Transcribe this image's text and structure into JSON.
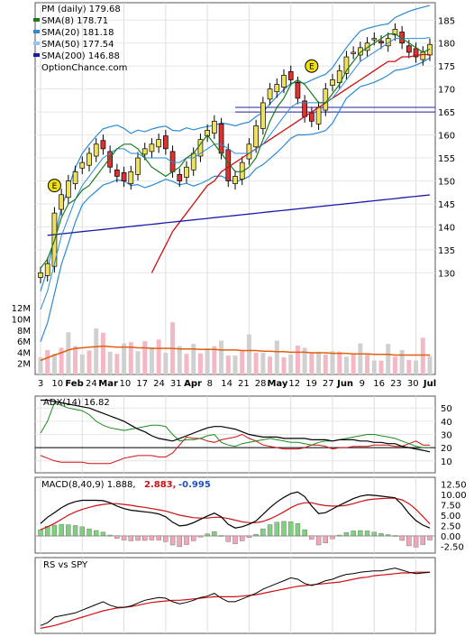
{
  "chart_data": [
    {
      "type": "candlestick",
      "panel": "price",
      "title": "PM (daily) 179.68",
      "legend": [
        {
          "label": "SMA(8) 178.71",
          "color": "#1a7a1a"
        },
        {
          "label": "SMA(20) 181.18",
          "color": "#2a8ad8"
        },
        {
          "label": "SMA(50) 177.54",
          "color": "#8ec8ee"
        },
        {
          "label": "SMA(200) 146.88",
          "color": "#1a1aaa"
        }
      ],
      "watermark": "OptionChance.com",
      "y_ticks": [
        "185",
        "180",
        "175",
        "170",
        "165",
        "160",
        "155",
        "150",
        "145",
        "140",
        "135",
        "130"
      ],
      "ylim": [
        123,
        188
      ],
      "x_ticks": [
        "3",
        "10",
        "Feb",
        "24",
        "Mar",
        "10",
        "17",
        "24",
        "31",
        "Apr",
        "8",
        "14",
        "21",
        "28",
        "May",
        "12",
        "19",
        "27",
        "Jun",
        "9",
        "16",
        "23",
        "30",
        "Jul"
      ],
      "earnings_markers": [
        "E",
        "E"
      ],
      "horizontal_levels": [
        166.0,
        165.0
      ],
      "series": [
        {
          "name": "SMA(8)",
          "values": [
            131,
            133,
            137,
            142,
            145,
            146,
            148,
            149,
            151,
            153,
            155,
            157,
            158,
            158,
            157,
            155,
            153,
            152,
            151,
            152,
            153,
            155,
            156,
            158,
            160,
            158,
            156,
            154,
            152,
            152,
            153,
            155,
            159,
            163,
            166,
            168,
            171,
            172,
            171,
            169,
            167,
            167,
            169,
            171,
            174,
            176,
            178,
            179,
            180,
            181,
            182,
            182,
            181,
            180,
            179,
            178,
            178.7
          ]
        },
        {
          "name": "SMA(20)",
          "values": [
            122,
            126,
            132,
            138,
            142,
            146,
            149,
            151,
            153,
            155,
            156,
            157,
            157,
            156,
            156,
            155,
            155,
            155,
            155,
            154,
            154,
            155,
            155,
            156,
            157,
            158,
            158,
            157,
            156,
            156,
            156,
            157,
            158,
            160,
            162,
            164,
            166,
            167,
            167,
            167,
            167,
            167,
            168,
            170,
            172,
            174,
            176,
            177,
            178,
            179,
            180,
            181,
            181,
            181,
            181,
            181,
            181.2
          ]
        },
        {
          "name": "SMA(50)",
          "values": [
            null,
            null,
            null,
            null,
            null,
            null,
            null,
            null,
            null,
            null,
            null,
            null,
            null,
            null,
            null,
            null,
            130,
            133,
            136,
            139,
            141,
            143,
            145,
            147,
            149,
            150,
            152,
            153,
            154,
            155,
            156,
            157,
            158,
            159,
            160,
            161,
            162,
            163,
            164,
            165,
            166,
            167,
            168,
            169,
            170,
            171,
            172,
            173,
            174,
            175,
            176,
            176,
            177,
            177,
            177.3,
            177.5,
            177.5
          ]
        },
        {
          "name": "SMA(200)",
          "values": [
            null,
            null,
            null,
            null,
            null,
            null,
            null,
            null,
            null,
            null,
            null,
            null,
            null,
            null,
            null,
            null,
            null,
            null,
            null,
            null,
            null,
            null,
            null,
            null,
            null,
            null,
            null,
            null,
            null,
            null,
            null,
            null,
            null,
            null,
            null,
            null,
            null,
            null,
            null,
            null,
            null,
            null,
            null,
            null,
            null,
            null,
            null,
            null,
            null,
            null,
            null,
            null,
            null,
            null,
            null,
            null,
            146.9
          ]
        },
        {
          "name": "Close",
          "values": [
            130,
            132,
            143,
            147,
            150,
            152,
            154,
            156,
            158,
            157,
            153,
            151,
            150,
            152,
            155,
            157,
            158,
            159,
            157,
            152,
            150,
            153,
            156,
            159,
            161,
            163,
            156,
            150,
            151,
            154,
            158,
            162,
            167,
            170,
            171,
            173,
            172,
            168,
            164,
            163,
            166,
            170,
            172,
            174,
            177,
            178,
            179,
            180,
            181,
            180,
            181,
            183,
            180,
            178,
            177,
            178,
            179.7
          ]
        }
      ]
    },
    {
      "type": "bar",
      "panel": "volume",
      "y_ticks": [
        "12M",
        "10M",
        "8M",
        "6M",
        "4M",
        "2M"
      ],
      "ylim": [
        0,
        13
      ],
      "values": [
        3.1,
        4.4,
        3.7,
        4.8,
        7.6,
        5.1,
        3.6,
        4.3,
        8.3,
        7.5,
        4.1,
        3.7,
        5.6,
        5.8,
        4.2,
        6.0,
        4.9,
        6.3,
        3.9,
        9.4,
        5.1,
        3.7,
        5.5,
        3.8,
        4.7,
        5.1,
        6.1,
        3.4,
        3.4,
        4.2,
        7.2,
        3.9,
        3.9,
        3.2,
        6.1,
        3.1,
        3.6,
        5.2,
        4.8,
        3.9,
        4.1,
        3.6,
        4.2,
        4.1,
        3.2,
        3.8,
        5.6,
        3.6,
        2.5,
        2.5,
        5.5,
        3.2,
        4.4,
        2.6,
        2.5,
        6.6,
        3.3
      ],
      "average": [
        2.5,
        3.0,
        3.5,
        3.9,
        4.4,
        4.7,
        4.8,
        4.9,
        5.0,
        5.1,
        5.0,
        4.9,
        4.9,
        4.9,
        4.8,
        4.8,
        4.7,
        4.7,
        4.7,
        4.7,
        4.6,
        4.6,
        4.6,
        4.5,
        4.5,
        4.5,
        4.4,
        4.4,
        4.4,
        4.3,
        4.3,
        4.3,
        4.2,
        4.2,
        4.1,
        4.1,
        4.0,
        4.0,
        4.0,
        3.9,
        3.9,
        3.9,
        3.8,
        3.8,
        3.8,
        3.7,
        3.7,
        3.7,
        3.6,
        3.6,
        3.6,
        3.5,
        3.5,
        3.5,
        3.5,
        3.5,
        3.5
      ]
    },
    {
      "type": "line",
      "panel": "adx",
      "title": "ADX(14) 16.82",
      "y_ticks": [
        "50",
        "40",
        "30",
        "20",
        "10"
      ],
      "ylim": [
        3,
        57
      ],
      "series": [
        {
          "name": "ADX",
          "values": [
            56,
            56,
            55,
            54,
            53,
            52,
            51,
            50,
            48,
            46,
            44,
            42,
            40,
            37,
            34,
            32,
            29,
            27,
            26,
            25,
            27,
            29,
            31,
            33,
            35,
            36,
            36,
            35,
            34,
            32,
            30,
            29,
            28,
            28,
            28,
            27,
            27,
            27,
            27,
            26,
            26,
            26,
            25,
            26,
            26,
            26,
            25,
            25,
            24,
            24,
            23,
            23,
            21,
            20,
            19,
            18,
            16.8
          ]
        },
        {
          "name": "+DI",
          "values": [
            31,
            40,
            54,
            52,
            50,
            49,
            48,
            45,
            40,
            37,
            35,
            34,
            33,
            34,
            35,
            36,
            37,
            37,
            36,
            30,
            25,
            26,
            26,
            27,
            29,
            30,
            24,
            22,
            21,
            23,
            24,
            25,
            26,
            27,
            26,
            25,
            24,
            24,
            23,
            22,
            24,
            25,
            25,
            26,
            27,
            28,
            29,
            30,
            30,
            29,
            28,
            27,
            25,
            23,
            21,
            20,
            20
          ]
        },
        {
          "name": "-DI",
          "values": [
            14,
            12,
            10,
            9,
            9,
            9,
            9,
            8,
            8,
            8,
            8,
            10,
            12,
            13,
            14,
            14,
            14,
            13,
            13,
            16,
            22,
            28,
            27,
            27,
            25,
            24,
            26,
            27,
            28,
            30,
            27,
            25,
            22,
            21,
            20,
            19,
            19,
            19,
            20,
            22,
            22,
            21,
            19,
            20,
            20,
            21,
            21,
            21,
            22,
            22,
            22,
            21,
            21,
            23,
            25,
            22,
            22
          ]
        }
      ]
    },
    {
      "type": "line",
      "panel": "macd",
      "title": "MACD(8,40,9) 1.888,",
      "signal_label": "2.883,",
      "histogram_label": "-0.995",
      "y_ticks": [
        "12.50",
        "10.00",
        "7.50",
        "5.00",
        "2.50",
        "0.00",
        "-2.50"
      ],
      "ylim": [
        -3.5,
        13.5
      ],
      "series": [
        {
          "name": "MACD",
          "values": [
            3,
            4.5,
            5.6,
            6.8,
            7.7,
            8.3,
            8.6,
            8.6,
            8.6,
            8.5,
            8,
            7.2,
            6.6,
            6.2,
            6,
            5.8,
            5.6,
            5.3,
            4.6,
            3.3,
            2.4,
            2.6,
            3.2,
            4,
            4.8,
            5.5,
            4.6,
            2.8,
            1.9,
            2.2,
            2.8,
            3.6,
            5.2,
            6.8,
            8.2,
            9.3,
            10.2,
            10.6,
            9.5,
            7.2,
            5.4,
            5.6,
            6.5,
            7.4,
            8.2,
            9,
            9.6,
            9.9,
            9.8,
            9.6,
            9.4,
            9.2,
            7.6,
            5.4,
            3.7,
            2.6,
            1.9
          ]
        },
        {
          "name": "Signal",
          "values": [
            1.5,
            2.2,
            3,
            4,
            5,
            5.8,
            6.4,
            6.9,
            7.3,
            7.6,
            7.8,
            7.8,
            7.6,
            7.4,
            7.1,
            6.9,
            6.6,
            6.3,
            6,
            5.5,
            5,
            4.7,
            4.4,
            4.3,
            4.3,
            4.5,
            4.5,
            4.2,
            3.8,
            3.4,
            3.2,
            3.2,
            3.5,
            4.1,
            4.9,
            5.8,
            6.8,
            7.6,
            8,
            8,
            7.6,
            7.3,
            7.2,
            7.2,
            7.4,
            7.8,
            8.3,
            8.7,
            8.9,
            9,
            9.1,
            9.1,
            8.7,
            7.8,
            6.4,
            4.7,
            2.9
          ]
        },
        {
          "name": "Histogram",
          "values": [
            1.5,
            2.3,
            2.6,
            2.8,
            2.7,
            2.5,
            2.2,
            1.7,
            1.3,
            0.9,
            0.2,
            -0.6,
            -1,
            -1.2,
            -1.1,
            -1.1,
            -1,
            -1,
            -1.4,
            -2.2,
            -2.6,
            -2.1,
            -1.2,
            -0.3,
            0.5,
            1,
            0.1,
            -1.4,
            -1.9,
            -1.2,
            -0.4,
            0.4,
            1.7,
            2.7,
            3.3,
            3.5,
            3.4,
            3,
            1.5,
            -0.8,
            -2.2,
            -1.7,
            -0.7,
            0.2,
            0.8,
            1.2,
            1.3,
            1.2,
            0.9,
            0.6,
            0.3,
            0.1,
            -1.1,
            -2.4,
            -2.7,
            -2.1,
            -1
          ]
        }
      ]
    },
    {
      "type": "line",
      "panel": "rs",
      "title": "RS vs SPY",
      "series": [
        {
          "name": "RS",
          "values": [
            6,
            10,
            18,
            20,
            22,
            24,
            28,
            32,
            36,
            40,
            35,
            32,
            32,
            34,
            38,
            42,
            44,
            46,
            45,
            40,
            37,
            39,
            42,
            46,
            48,
            52,
            45,
            40,
            40,
            44,
            48,
            52,
            58,
            62,
            66,
            70,
            74,
            72,
            66,
            63,
            66,
            70,
            72,
            76,
            79,
            80,
            82,
            83,
            84,
            84,
            86,
            88,
            85,
            82,
            80,
            81,
            82
          ]
        },
        {
          "name": "RS average",
          "values": [
            2,
            4,
            6,
            9,
            12,
            15,
            18,
            21,
            24,
            27,
            29,
            31,
            32,
            33,
            35,
            37,
            39,
            40,
            41,
            42,
            42,
            43,
            44,
            45,
            46,
            47,
            47,
            47,
            47,
            48,
            49,
            50,
            52,
            54,
            56,
            58,
            60,
            62,
            63,
            64,
            65,
            66,
            67,
            68,
            70,
            72,
            74,
            75,
            77,
            78,
            79,
            80,
            81,
            81,
            82,
            82,
            82
          ]
        }
      ]
    }
  ]
}
